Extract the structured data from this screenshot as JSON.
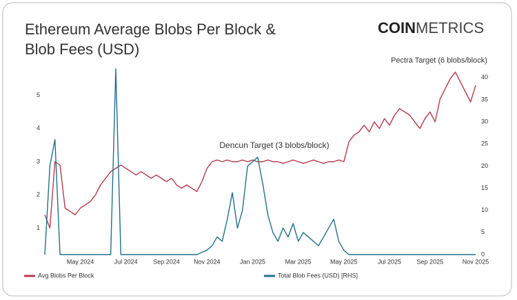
{
  "chart_data": {
    "type": "line",
    "title": [
      "Ethereum Average Blobs Per Block &",
      "Blob Fees (USD)"
    ],
    "brand": [
      "COIN",
      "METRICS"
    ],
    "annotations": [
      "Dencun Target (3 blobs/block)",
      "Pectra Target (6 blobs/block)"
    ],
    "categories": [
      null,
      null,
      null,
      null,
      null,
      null,
      null,
      "May 2024",
      null,
      null,
      null,
      null,
      null,
      null,
      null,
      null,
      "Jul 2024",
      null,
      null,
      null,
      null,
      null,
      null,
      null,
      "Sep 2024",
      null,
      null,
      null,
      null,
      null,
      null,
      null,
      "Nov 2024",
      null,
      null,
      null,
      null,
      null,
      null,
      null,
      null,
      "Jan 2025",
      null,
      null,
      null,
      null,
      null,
      null,
      null,
      null,
      "Mar 2025",
      null,
      null,
      null,
      null,
      null,
      null,
      null,
      null,
      "May 2025",
      null,
      null,
      null,
      null,
      null,
      null,
      null,
      null,
      "Jul 2025",
      null,
      null,
      null,
      null,
      null,
      null,
      null,
      "Sep 2025",
      null,
      null,
      null,
      null,
      null,
      null,
      null,
      null,
      "Nov 2025"
    ],
    "series": [
      {
        "name": "Avg Blobs Per Block",
        "color": "#b8384c",
        "axis": "y",
        "values": [
          1.4,
          1.0,
          3.0,
          2.9,
          1.6,
          1.5,
          1.4,
          1.6,
          1.7,
          1.8,
          2.0,
          2.3,
          2.5,
          2.7,
          2.8,
          2.9,
          2.8,
          2.7,
          2.6,
          2.7,
          2.6,
          2.5,
          2.6,
          2.5,
          2.4,
          2.5,
          2.3,
          2.2,
          2.3,
          2.2,
          2.1,
          2.4,
          2.8,
          3.0,
          3.05,
          3.0,
          3.05,
          3.0,
          3.0,
          3.05,
          3.0,
          3.05,
          3.0,
          3.0,
          3.05,
          3.0,
          3.0,
          2.95,
          3.0,
          3.05,
          3.0,
          2.95,
          3.0,
          3.05,
          3.0,
          2.95,
          3.0,
          3.0,
          3.05,
          3.0,
          3.6,
          3.8,
          3.9,
          4.1,
          3.9,
          4.2,
          4.0,
          4.3,
          4.1,
          4.4,
          4.6,
          4.5,
          4.4,
          4.2,
          4.0,
          4.3,
          4.5,
          4.2,
          4.9,
          5.2,
          5.5,
          5.7,
          5.4,
          5.1,
          4.8,
          5.3
        ]
      },
      {
        "name": "Total Blob Fees (USD) [RHS]",
        "color": "#1f6f8b",
        "axis": "y2",
        "values": [
          0,
          20,
          26,
          0,
          0,
          0,
          0,
          0,
          0,
          0,
          0,
          0,
          0,
          0,
          42,
          0,
          0,
          0,
          0,
          0,
          0,
          0,
          0,
          0,
          0,
          0,
          0,
          0,
          0,
          0,
          0,
          0.5,
          1,
          2,
          4,
          3,
          8,
          14,
          6,
          10,
          20,
          21,
          22,
          16,
          9,
          5,
          3,
          6,
          4,
          7,
          3,
          5,
          4,
          3,
          2,
          4,
          6,
          8,
          3,
          1,
          0,
          0,
          0,
          0,
          0,
          0,
          0,
          0,
          0,
          0,
          0,
          0,
          0,
          0,
          0,
          0,
          0,
          0,
          0,
          0,
          0,
          0,
          0,
          0,
          0,
          0
        ]
      }
    ],
    "ylim": [
      0.2,
      5.8
    ],
    "yticks": [
      1,
      2,
      3,
      4,
      5
    ],
    "y2lim": [
      0,
      42
    ],
    "y2ticks": [
      0,
      5,
      10,
      15,
      20,
      25,
      30,
      35,
      40
    ],
    "legend": "bottom"
  }
}
